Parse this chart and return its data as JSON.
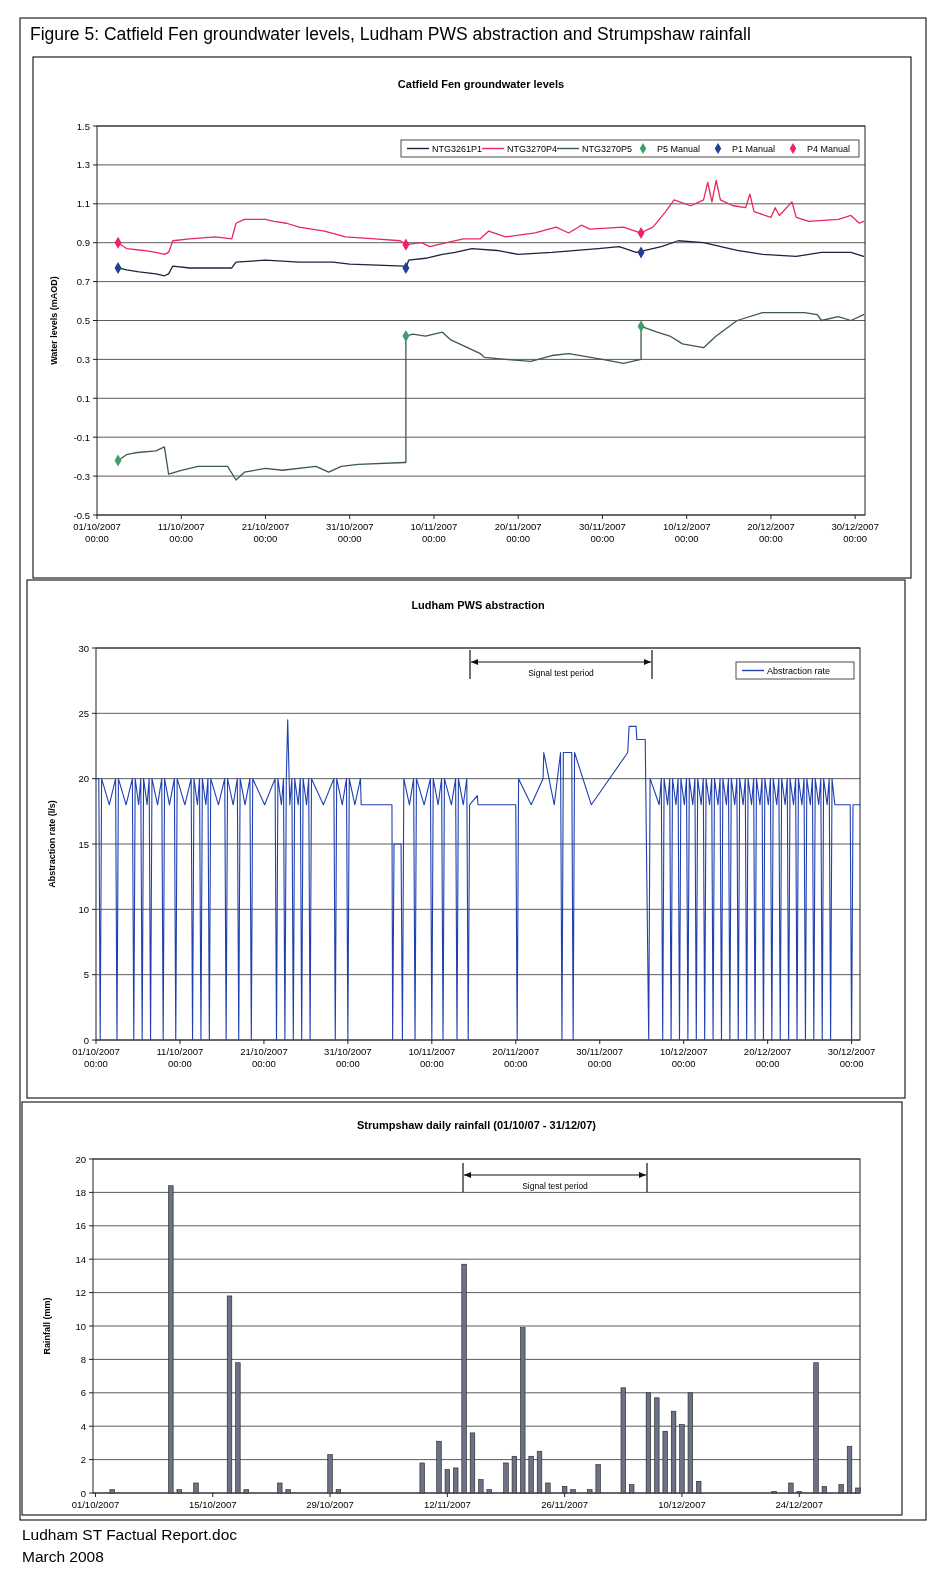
{
  "chart_data": [
    {
      "type": "line",
      "title": "Catfield Fen groundwater levels",
      "ylabel": "Water levels (mAOD)",
      "annotations": [
        "Figure 5: Catfield Fen groundwater levels, Ludham PWS abstraction and Strumpshaw rainfall"
      ],
      "xlim": [
        "2007-10-01T00:00",
        "2007-12-31T04:00"
      ],
      "xticks": [
        {
          "value": "2007-10-01",
          "label": "01/10/2007 00:00"
        },
        {
          "value": "2007-10-11",
          "label": "11/10/2007 00:00"
        },
        {
          "value": "2007-10-21",
          "label": "21/10/2007 00:00"
        },
        {
          "value": "2007-10-31",
          "label": "31/10/2007 00:00"
        },
        {
          "value": "2007-11-10",
          "label": "10/11/2007 00:00"
        },
        {
          "value": "2007-11-20",
          "label": "20/11/2007 00:00"
        },
        {
          "value": "2007-11-30",
          "label": "30/11/2007 00:00"
        },
        {
          "value": "2007-12-10",
          "label": "10/12/2007 00:00"
        },
        {
          "value": "2007-12-20",
          "label": "20/12/2007 00:00"
        },
        {
          "value": "2007-12-30",
          "label": "30/12/2007 00:00"
        }
      ],
      "ylim": [
        -0.5,
        1.5
      ],
      "yticks": [
        -0.5,
        -0.3,
        -0.1,
        0.1,
        0.3,
        0.5,
        0.7,
        0.9,
        1.1,
        1.3,
        1.5
      ],
      "grid": "y",
      "legend": "top right",
      "series": [
        {
          "name": "NTG3261P1",
          "color": "#1c2340",
          "x": [
            "2007-10-03T12:00",
            "2007-10-04T12:00",
            "2007-10-06",
            "2007-10-08",
            "2007-10-09",
            "2007-10-09T12:00",
            "2007-10-10",
            "2007-10-12",
            "2007-10-17",
            "2007-10-17T12:00",
            "2007-10-21",
            "2007-10-25",
            "2007-10-29",
            "2007-10-31",
            "2007-11-06T12:00",
            "2007-11-06T16:00",
            "2007-11-07",
            "2007-11-09",
            "2007-11-11",
            "2007-11-12T12:00",
            "2007-11-14T12:00",
            "2007-11-17T12:00",
            "2007-11-20",
            "2007-11-24",
            "2007-11-29T12:00",
            "2007-12-02",
            "2007-12-04",
            "2007-12-07",
            "2007-12-09",
            "2007-12-12",
            "2007-12-16",
            "2007-12-19",
            "2007-12-23",
            "2007-12-26",
            "2007-12-29T12:00",
            "2007-12-31"
          ],
          "values": [
            0.77,
            0.76,
            0.75,
            0.74,
            0.73,
            0.74,
            0.78,
            0.77,
            0.77,
            0.8,
            0.81,
            0.8,
            0.8,
            0.79,
            0.78,
            0.77,
            0.81,
            0.82,
            0.84,
            0.85,
            0.87,
            0.86,
            0.84,
            0.85,
            0.87,
            0.88,
            0.85,
            0.88,
            0.91,
            0.9,
            0.86,
            0.84,
            0.83,
            0.85,
            0.85,
            0.83
          ]
        },
        {
          "name": "NTG3270P4",
          "color": "#e8285a",
          "x": [
            "2007-10-03T12:00",
            "2007-10-04T12:00",
            "2007-10-06T12:00",
            "2007-10-08",
            "2007-10-09",
            "2007-10-09T12:00",
            "2007-10-10",
            "2007-10-12",
            "2007-10-15",
            "2007-10-17",
            "2007-10-17T12:00",
            "2007-10-18T12:00",
            "2007-10-21",
            "2007-10-22",
            "2007-10-23T12:00",
            "2007-10-25",
            "2007-10-28",
            "2007-10-30T12:00",
            "2007-11-03",
            "2007-11-06",
            "2007-11-06T16:00",
            "2007-11-08T12:00",
            "2007-11-09T12:00",
            "2007-11-11T12:00",
            "2007-11-13T12:00",
            "2007-11-15T12:00",
            "2007-11-16T12:00",
            "2007-11-18T12:00",
            "2007-11-22",
            "2007-11-24T12:00",
            "2007-11-26",
            "2007-11-27T12:00",
            "2007-11-28T12:00",
            "2007-12-02T12:00",
            "2007-12-04T12:00",
            "2007-12-06",
            "2007-12-07T12:00",
            "2007-12-08T12:00",
            "2007-12-10T12:00",
            "2007-12-12",
            "2007-12-12T12:00",
            "2007-12-13",
            "2007-12-13T12:00",
            "2007-12-14",
            "2007-12-15T12:00",
            "2007-12-17",
            "2007-12-17T12:00",
            "2007-12-18",
            "2007-12-20",
            "2007-12-20T12:00",
            "2007-12-21",
            "2007-12-22T12:00",
            "2007-12-23",
            "2007-12-24T12:00",
            "2007-12-28",
            "2007-12-29T12:00",
            "2007-12-30T12:00",
            "2007-12-31"
          ],
          "values": [
            0.9,
            0.87,
            0.86,
            0.85,
            0.84,
            0.85,
            0.91,
            0.92,
            0.93,
            0.92,
            1.0,
            1.02,
            1.02,
            1.01,
            1.0,
            0.98,
            0.96,
            0.93,
            0.92,
            0.91,
            0.89,
            0.9,
            0.88,
            0.9,
            0.92,
            0.92,
            0.96,
            0.93,
            0.95,
            0.98,
            0.95,
            0.99,
            0.97,
            0.98,
            0.95,
            0.98,
            1.06,
            1.12,
            1.09,
            1.12,
            1.21,
            1.11,
            1.22,
            1.12,
            1.09,
            1.08,
            1.15,
            1.06,
            1.03,
            1.08,
            1.04,
            1.11,
            1.03,
            1.01,
            1.02,
            1.04,
            1.0,
            1.01
          ]
        },
        {
          "name": "NTG3270P5",
          "color": "#3d5a45",
          "x": [
            "2007-10-03T12:00",
            "2007-10-04T12:00",
            "2007-10-05T12:00",
            "2007-10-08",
            "2007-10-09",
            "2007-10-09T12:00",
            "2007-10-11",
            "2007-10-13",
            "2007-10-16T12:00",
            "2007-10-17T12:00",
            "2007-10-18T12:00",
            "2007-10-21",
            "2007-10-23",
            "2007-10-27",
            "2007-10-28T12:00",
            "2007-10-30",
            "2007-11-01",
            "2007-11-06T12:00",
            "2007-11-06T16:00",
            "2007-11-06T16:00",
            "2007-11-07T12:00",
            "2007-11-09",
            "2007-11-11",
            "2007-11-12",
            "2007-11-14T12:00",
            "2007-11-15T12:00",
            "2007-11-16",
            "2007-11-18T12:00",
            "2007-11-21T12:00",
            "2007-11-24",
            "2007-11-26",
            "2007-11-30",
            "2007-12-02T12:00",
            "2007-12-04T14:00",
            "2007-12-04T14:00",
            "2007-12-06T12:00",
            "2007-12-08",
            "2007-12-09T12:00",
            "2007-12-12",
            "2007-12-13T12:00",
            "2007-12-16",
            "2007-12-19",
            "2007-12-24",
            "2007-12-25T12:00",
            "2007-12-26",
            "2007-12-28",
            "2007-12-29T12:00",
            "2007-12-31"
          ],
          "values": [
            -0.22,
            -0.19,
            -0.18,
            -0.17,
            -0.15,
            -0.29,
            -0.27,
            -0.25,
            -0.25,
            -0.32,
            -0.28,
            -0.26,
            -0.27,
            -0.25,
            -0.28,
            -0.25,
            -0.24,
            -0.23,
            -0.23,
            0.42,
            0.43,
            0.42,
            0.44,
            0.4,
            0.35,
            0.33,
            0.31,
            0.3,
            0.29,
            0.32,
            0.33,
            0.3,
            0.28,
            0.3,
            0.47,
            0.44,
            0.42,
            0.38,
            0.36,
            0.42,
            0.5,
            0.54,
            0.54,
            0.53,
            0.5,
            0.52,
            0.5,
            0.53
          ]
        },
        {
          "name": "P5 Manual",
          "type": "scatter",
          "marker": "diamond",
          "color": "#3f9f6f",
          "x": [
            "2007-10-03T12:00",
            "2007-11-06T16:00",
            "2007-12-04T14:00"
          ],
          "values": [
            -0.22,
            0.42,
            0.47
          ]
        },
        {
          "name": "P1 Manual",
          "type": "scatter",
          "marker": "diamond",
          "color": "#1f3f8f",
          "x": [
            "2007-10-03T12:00",
            "2007-11-06T16:00",
            "2007-12-04T14:00"
          ],
          "values": [
            0.77,
            0.77,
            0.85
          ]
        },
        {
          "name": "P4 Manual",
          "type": "scatter",
          "marker": "diamond",
          "color": "#ee2266",
          "x": [
            "2007-10-03T12:00",
            "2007-11-06T16:00",
            "2007-12-04T14:00"
          ],
          "values": [
            0.9,
            0.89,
            0.95
          ]
        }
      ]
    },
    {
      "type": "line",
      "title": "Ludham PWS abstraction",
      "ylabel": "Abstraction rate (l/s)",
      "xlim": [
        "2007-10-01T00:00",
        "2007-12-31T00:00"
      ],
      "xticks": [
        {
          "value": "2007-10-01",
          "label": "01/10/2007 00:00"
        },
        {
          "value": "2007-10-11",
          "label": "11/10/2007 00:00"
        },
        {
          "value": "2007-10-21",
          "label": "21/10/2007 00:00"
        },
        {
          "value": "2007-10-31",
          "label": "31/10/2007 00:00"
        },
        {
          "value": "2007-11-10",
          "label": "10/11/2007 00:00"
        },
        {
          "value": "2007-11-20",
          "label": "20/11/2007 00:00"
        },
        {
          "value": "2007-11-30",
          "label": "30/11/2007 00:00"
        },
        {
          "value": "2007-12-10",
          "label": "10/12/2007 00:00"
        },
        {
          "value": "2007-12-20",
          "label": "20/12/2007 00:00"
        },
        {
          "value": "2007-12-30",
          "label": "30/12/2007 00:00"
        }
      ],
      "ylim": [
        0,
        30
      ],
      "yticks": [
        0,
        5,
        10,
        15,
        20,
        25,
        30
      ],
      "grid": "y",
      "legend": "top right",
      "annotations": [
        "Signal test period"
      ],
      "series": [
        {
          "name": "Abstraction rate",
          "color": "#2040b0",
          "x": [
            "2007-10-01T00:00",
            "2007-10-01T08:00",
            "2007-10-01T12:00",
            "2007-10-01T16:00",
            "2007-10-02T14:00",
            "2007-10-03T08:00",
            "2007-10-03T12:00",
            "2007-10-03T16:00",
            "2007-10-04T14:00",
            "2007-10-05T08:00",
            "2007-10-05T12:00",
            "2007-10-05T16:00",
            "2007-10-06T02:00",
            "2007-10-06T08:00",
            "2007-10-06T12:00",
            "2007-10-06T16:00",
            "2007-10-07T02:00",
            "2007-10-07T08:00",
            "2007-10-07T12:00",
            "2007-10-07T16:00",
            "2007-10-08T08:00",
            "2007-10-08T20:00",
            "2007-10-09T00:00",
            "2007-10-09T04:00",
            "2007-10-09T18:00",
            "2007-10-10T08:00",
            "2007-10-10T12:00",
            "2007-10-10T16:00",
            "2007-10-11T14:00",
            "2007-10-12T08:00",
            "2007-10-12T12:00",
            "2007-10-12T16:00",
            "2007-10-13T02:00",
            "2007-10-13T08:00",
            "2007-10-13T12:00",
            "2007-10-13T16:00",
            "2007-10-14T02:00",
            "2007-10-14T08:00",
            "2007-10-14T12:00",
            "2007-10-14T16:00",
            "2007-10-15T14:00",
            "2007-10-16T08:00",
            "2007-10-16T12:00",
            "2007-10-16T16:00",
            "2007-10-17T08:00",
            "2007-10-17T20:00",
            "2007-10-18T00:00",
            "2007-10-18T04:00",
            "2007-10-18T18:00",
            "2007-10-19T08:00",
            "2007-10-19T12:00",
            "2007-10-19T16:00",
            "2007-10-21T02:00",
            "2007-10-22T08:00",
            "2007-10-22T12:00",
            "2007-10-22T16:00",
            "2007-10-23T02:00",
            "2007-10-23T08:00",
            "2007-10-23T12:00",
            "2007-10-23T16:00",
            "2007-10-23T20:00",
            "2007-10-24T02:00",
            "2007-10-24T08:00",
            "2007-10-24T12:00",
            "2007-10-24T16:00",
            "2007-10-25T02:00",
            "2007-10-25T08:00",
            "2007-10-25T12:00",
            "2007-10-25T16:00",
            "2007-10-26T02:00",
            "2007-10-26T08:00",
            "2007-10-26T12:00",
            "2007-10-26T16:00",
            "2007-10-28T02:00",
            "2007-10-29T08:00",
            "2007-10-29T12:00",
            "2007-10-29T16:00",
            "2007-10-30T08:00",
            "2007-10-30T20:00",
            "2007-10-31T00:00",
            "2007-10-31T04:00",
            "2007-10-31T20:00",
            "2007-11-01T12:00",
            "2007-11-01T14:00",
            "2007-11-05T06:00",
            "2007-11-05T08:00",
            "2007-11-05T12:00",
            "2007-11-06T08:00",
            "2007-11-06T12:00",
            "2007-11-06T16:00",
            "2007-11-07T08:00",
            "2007-11-07T20:00",
            "2007-11-08T00:00",
            "2007-11-08T04:00",
            "2007-11-09T02:00",
            "2007-11-09T20:00",
            "2007-11-10T00:00",
            "2007-11-10T04:00",
            "2007-11-10T18:00",
            "2007-11-11T04:00",
            "2007-11-11T08:00",
            "2007-11-11T12:00",
            "2007-11-12T08:00",
            "2007-11-12T20:00",
            "2007-11-13T00:00",
            "2007-11-13T04:00",
            "2007-11-13T18:00",
            "2007-11-14T04:00",
            "2007-11-14T08:00",
            "2007-11-14T12:00",
            "2007-11-15T10:00",
            "2007-11-15T12:00",
            "2007-11-20T00:00",
            "2007-11-20T04:00",
            "2007-11-20T08:00",
            "2007-11-21T20:00",
            "2007-11-23T06:00",
            "2007-11-23T08:00",
            "2007-11-24T14:00",
            "2007-11-25T08:00",
            "2007-11-25T12:00",
            "2007-11-25T16:00",
            "2007-11-26T16:00",
            "2007-11-26T20:00",
            "2007-11-27T00:00",
            "2007-11-29T00:00",
            "2007-12-03T08:00",
            "2007-12-03T12:00",
            "2007-12-04T08:00",
            "2007-12-04T10:00",
            "2007-12-05T10:00",
            "2007-12-05T20:00",
            "2007-12-06T00:00",
            "2007-12-07T02:00",
            "2007-12-07T08:00",
            "2007-12-07T12:00",
            "2007-12-07T16:00",
            "2007-12-08T02:00",
            "2007-12-08T08:00",
            "2007-12-08T12:00",
            "2007-12-08T16:00",
            "2007-12-09T02:00",
            "2007-12-09T08:00",
            "2007-12-09T12:00",
            "2007-12-09T16:00",
            "2007-12-10T02:00",
            "2007-12-10T08:00",
            "2007-12-10T12:00",
            "2007-12-10T16:00",
            "2007-12-11T02:00",
            "2007-12-11T08:00",
            "2007-12-11T12:00",
            "2007-12-11T16:00",
            "2007-12-12T02:00",
            "2007-12-12T08:00",
            "2007-12-12T12:00",
            "2007-12-12T16:00",
            "2007-12-13T02:00",
            "2007-12-13T08:00",
            "2007-12-13T12:00",
            "2007-12-13T16:00",
            "2007-12-14T02:00",
            "2007-12-14T08:00",
            "2007-12-14T12:00",
            "2007-12-14T16:00",
            "2007-12-15T02:00",
            "2007-12-15T08:00",
            "2007-12-15T12:00",
            "2007-12-15T16:00",
            "2007-12-16T02:00",
            "2007-12-16T08:00",
            "2007-12-16T12:00",
            "2007-12-16T16:00",
            "2007-12-17T02:00",
            "2007-12-17T08:00",
            "2007-12-17T12:00",
            "2007-12-17T16:00",
            "2007-12-18T02:00",
            "2007-12-18T08:00",
            "2007-12-18T12:00",
            "2007-12-18T16:00",
            "2007-12-19T02:00",
            "2007-12-19T08:00",
            "2007-12-19T12:00",
            "2007-12-19T16:00",
            "2007-12-20T02:00",
            "2007-12-20T08:00",
            "2007-12-20T12:00",
            "2007-12-20T16:00",
            "2007-12-21T02:00",
            "2007-12-21T08:00",
            "2007-12-21T12:00",
            "2007-12-21T16:00",
            "2007-12-22T02:00",
            "2007-12-22T08:00",
            "2007-12-22T12:00",
            "2007-12-22T16:00",
            "2007-12-23T02:00",
            "2007-12-23T08:00",
            "2007-12-23T12:00",
            "2007-12-23T16:00",
            "2007-12-24T02:00",
            "2007-12-24T08:00",
            "2007-12-24T12:00",
            "2007-12-24T16:00",
            "2007-12-25T02:00",
            "2007-12-25T08:00",
            "2007-12-25T12:00",
            "2007-12-25T16:00",
            "2007-12-26T02:00",
            "2007-12-26T08:00",
            "2007-12-26T12:00",
            "2007-12-26T16:00",
            "2007-12-27T02:00",
            "2007-12-27T08:00",
            "2007-12-27T12:00",
            "2007-12-27T16:00",
            "2007-12-28T00:00",
            "2007-12-29T20:00",
            "2007-12-30T00:00",
            "2007-12-30T04:00",
            "2007-12-31T00:00"
          ],
          "values": [
            20,
            20,
            0,
            20,
            18,
            20,
            0,
            20,
            18,
            20,
            0,
            20,
            18,
            20,
            0,
            20,
            18,
            20,
            0,
            20,
            18,
            20,
            0,
            20,
            18,
            20,
            0,
            20,
            18,
            20,
            0,
            20,
            18,
            20,
            0,
            20,
            18,
            20,
            0,
            20,
            18,
            20,
            0,
            20,
            18,
            20,
            0,
            20,
            18,
            20,
            0,
            20,
            18,
            20,
            0,
            20,
            18,
            20,
            0,
            20,
            24.5,
            18,
            20,
            0,
            20,
            18,
            20,
            0,
            20,
            18,
            20,
            0,
            20,
            18,
            20,
            0,
            20,
            18,
            20,
            0,
            20,
            18,
            20,
            18,
            18,
            0,
            15,
            15,
            0,
            20,
            18,
            20,
            0,
            20,
            18,
            20,
            0,
            20,
            18,
            20,
            0,
            20,
            18,
            20,
            0,
            20,
            18,
            20,
            0,
            18,
            18.7,
            18,
            18,
            0,
            20,
            18,
            20,
            22,
            18,
            22,
            0,
            22,
            22,
            0,
            22,
            18,
            22,
            24,
            24,
            23,
            23,
            0,
            20,
            18,
            20,
            0,
            20,
            18,
            20,
            0,
            20,
            18,
            20,
            0,
            20,
            18,
            20,
            0,
            20,
            18,
            20,
            0,
            20,
            18,
            20,
            0,
            20,
            18,
            20,
            0,
            20,
            18,
            20,
            0,
            20,
            18,
            20,
            0,
            20,
            18,
            20,
            0,
            20,
            18,
            20,
            0,
            20,
            18,
            20,
            0,
            20,
            18,
            20,
            0,
            20,
            18,
            20,
            0,
            20,
            18,
            20,
            0,
            20,
            18,
            20,
            0,
            20,
            18,
            20,
            0,
            20,
            18,
            20,
            0,
            20,
            18,
            20,
            0,
            20,
            18,
            20,
            0,
            20,
            18,
            20,
            0,
            20,
            18,
            18,
            0,
            18,
            18
          ]
        }
      ]
    },
    {
      "type": "bar",
      "title": "Strumpshaw daily rainfall (01/10/07 - 31/12/07)",
      "ylabel": "Rainfall (mm)",
      "annotations": [
        "Ludham ST Factual Report.doc",
        "March 2008",
        "Signal test period"
      ],
      "xlim": [
        "2007-09-30T17:00",
        "2007-12-31T06:00"
      ],
      "xticks": [
        {
          "value": "2007-10-01",
          "label": "01/10/2007"
        },
        {
          "value": "2007-10-15",
          "label": "15/10/2007"
        },
        {
          "value": "2007-10-29",
          "label": "29/10/2007"
        },
        {
          "value": "2007-11-12",
          "label": "12/11/2007"
        },
        {
          "value": "2007-11-26",
          "label": "26/11/2007"
        },
        {
          "value": "2007-12-10",
          "label": "10/12/2007"
        },
        {
          "value": "2007-12-24",
          "label": "24/12/2007"
        }
      ],
      "ylim": [
        0,
        20
      ],
      "yticks": [
        0,
        2,
        4,
        6,
        8,
        10,
        12,
        14,
        16,
        18,
        20
      ],
      "grid": "y",
      "color": "#6b7186",
      "x": [
        "2007-10-03",
        "2007-10-10",
        "2007-10-11",
        "2007-10-13",
        "2007-10-17",
        "2007-10-18",
        "2007-10-19",
        "2007-10-23",
        "2007-10-24",
        "2007-10-29",
        "2007-10-30",
        "2007-11-09",
        "2007-11-11",
        "2007-11-12",
        "2007-11-13",
        "2007-11-14",
        "2007-11-15",
        "2007-11-16",
        "2007-11-17",
        "2007-11-19",
        "2007-11-20",
        "2007-11-21",
        "2007-11-22",
        "2007-11-23",
        "2007-11-24",
        "2007-11-26",
        "2007-11-27",
        "2007-11-29",
        "2007-11-30",
        "2007-12-03",
        "2007-12-04",
        "2007-12-06",
        "2007-12-07",
        "2007-12-08",
        "2007-12-09",
        "2007-12-10",
        "2007-12-11",
        "2007-12-12",
        "2007-12-21",
        "2007-12-23",
        "2007-12-24",
        "2007-12-26",
        "2007-12-27",
        "2007-12-29",
        "2007-12-30",
        "2007-12-31"
      ],
      "values": [
        0.2,
        18.4,
        0.2,
        0.6,
        11.8,
        7.8,
        0.2,
        0.6,
        0.2,
        2.3,
        0.2,
        1.8,
        3.1,
        1.4,
        1.5,
        13.7,
        3.6,
        0.8,
        0.2,
        1.8,
        2.2,
        9.9,
        2.2,
        2.5,
        0.6,
        0.4,
        0.2,
        0.2,
        1.7,
        6.3,
        0.5,
        6.0,
        5.7,
        3.7,
        4.9,
        4.1,
        6.0,
        0.7,
        0.1,
        0.6,
        0.1,
        7.8,
        0.4,
        0.5,
        2.8,
        0.3
      ]
    }
  ]
}
